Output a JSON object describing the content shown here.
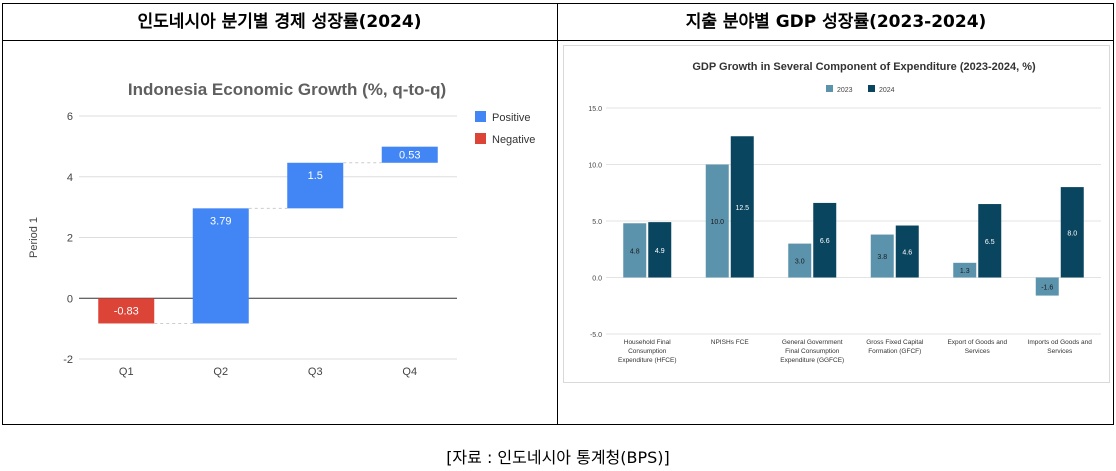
{
  "headers": {
    "left": "인도네시아 분기별 경제 성장률(2024)",
    "right": "지출 분야별 GDP 성장률(2023-2024)"
  },
  "source": "[자료 : 인도네시아 통계청(BPS)]",
  "chart_data": [
    {
      "type": "waterfall",
      "title": "Indonesia Economic Growth (%, q-to-q)",
      "ylabel": "Period 1",
      "xlabel": "",
      "ylim": [
        -2,
        6
      ],
      "yticks": [
        -2,
        0,
        2,
        4,
        6
      ],
      "grid": true,
      "legend": {
        "position": "right",
        "entries": [
          {
            "name": "Positive",
            "color": "#4285F4"
          },
          {
            "name": "Negative",
            "color": "#DB4437"
          }
        ]
      },
      "categories": [
        "Q1",
        "Q2",
        "Q3",
        "Q4"
      ],
      "values": [
        -0.83,
        3.79,
        1.5,
        0.53
      ],
      "labels": [
        "-0.83",
        "3.79",
        "1.5",
        "0.53"
      ]
    },
    {
      "type": "bar",
      "title": "GDP Growth in Several Component of Expenditure (2023-2024, %)",
      "ylim": [
        -5,
        15
      ],
      "yticks": [
        "-5.0",
        "0.0",
        "5.0",
        "10.0",
        "15.0"
      ],
      "grid": true,
      "legend": {
        "position": "top"
      },
      "categories": [
        [
          "Household Final",
          "Consumption",
          "Expenditure (HFCE)"
        ],
        [
          "NPISHs FCE"
        ],
        [
          "General Government",
          "Final Consumption",
          "Expenditure (GGFCE)"
        ],
        [
          "Gross Fixed Capital",
          "Formation (GFCF)"
        ],
        [
          "Export of Goods and",
          "Services"
        ],
        [
          "Imports od Goods and",
          "Services"
        ]
      ],
      "series": [
        {
          "name": "2023",
          "color": "#5b93ad",
          "values": [
            4.8,
            10.0,
            3.0,
            3.8,
            1.3,
            -1.6
          ],
          "labels": [
            "4.8",
            "10.0",
            "3.0",
            "3.8",
            "1.3",
            "-1.6"
          ]
        },
        {
          "name": "2024",
          "color": "#0a4560",
          "values": [
            4.9,
            12.5,
            6.6,
            4.6,
            6.5,
            8.0
          ],
          "labels": [
            "4.9",
            "12.5",
            "6.6",
            "4.6",
            "6.5",
            "8.0"
          ]
        }
      ]
    }
  ]
}
